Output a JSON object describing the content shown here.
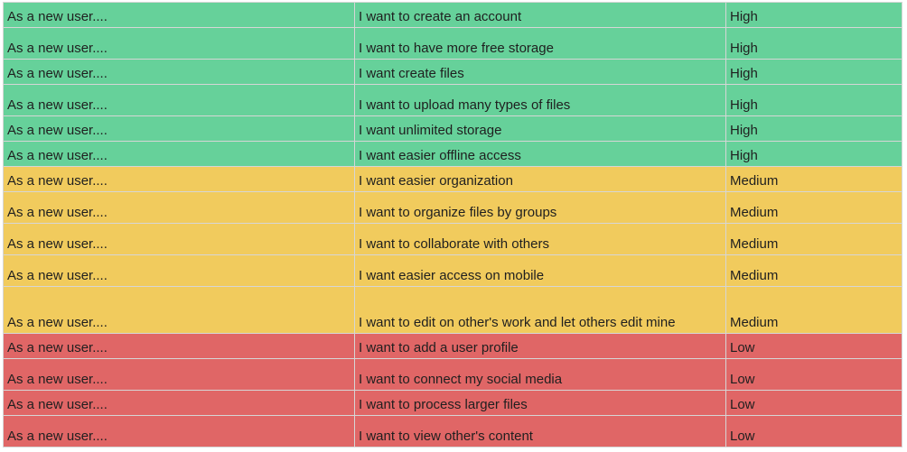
{
  "colors": {
    "high": "#66d19a",
    "medium": "#f1cb5d",
    "low": "#e06666",
    "gridline": "#d6d6d6"
  },
  "rows": [
    {
      "role": "As a new user....",
      "want": "I want to create an account",
      "priority": "High"
    },
    {
      "role": "As a new user....",
      "want": "I want to have more free storage",
      "priority": "High"
    },
    {
      "role": "As a new user....",
      "want": "I want create files",
      "priority": "High"
    },
    {
      "role": "As a new user....",
      "want": "I want to upload many types of files",
      "priority": "High"
    },
    {
      "role": "As a new user....",
      "want": "I want unlimited storage",
      "priority": "High"
    },
    {
      "role": "As a new user....",
      "want": "I want easier offline access",
      "priority": "High"
    },
    {
      "role": "As a new user....",
      "want": "I want easier organization",
      "priority": "Medium"
    },
    {
      "role": "As a new user....",
      "want": "I want to organize files by groups",
      "priority": "Medium"
    },
    {
      "role": "As a new user....",
      "want": "I want to collaborate with others",
      "priority": "Medium"
    },
    {
      "role": "As a new user....",
      "want": "I want easier access on mobile",
      "priority": "Medium"
    },
    {
      "role": "As a new user....",
      "want": "I want to edit on other's work and let others edit mine",
      "priority": "Medium"
    },
    {
      "role": "As a new user....",
      "want": "I want to add a user profile",
      "priority": "Low"
    },
    {
      "role": "As a new user....",
      "want": "I want to connect my social media",
      "priority": "Low"
    },
    {
      "role": "As a new user....",
      "want": "I want to process larger files",
      "priority": "Low"
    },
    {
      "role": "As a new user....",
      "want": "I want to view other's content",
      "priority": "Low"
    }
  ]
}
